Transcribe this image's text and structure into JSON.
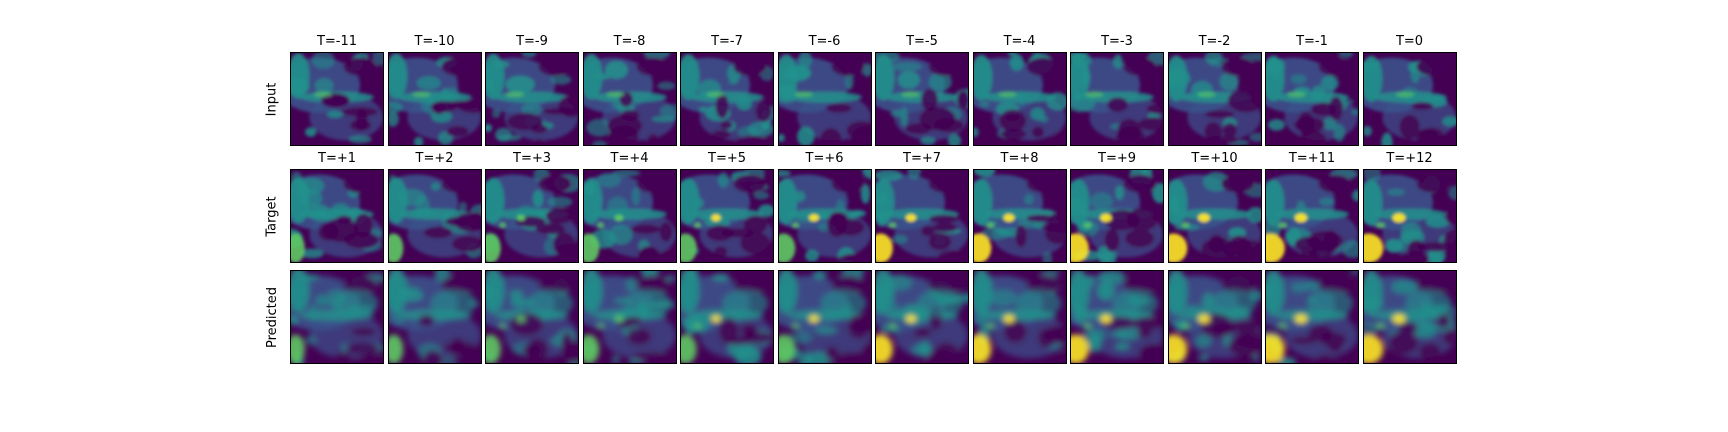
{
  "figure": {
    "colormap": "viridis",
    "rows": [
      {
        "label": "Input",
        "titles": [
          "T=-11",
          "T=-10",
          "T=-9",
          "T=-8",
          "T=-7",
          "T=-6",
          "T=-5",
          "T=-4",
          "T=-3",
          "T=-2",
          "T=-1",
          "T=0"
        ]
      },
      {
        "label": "Target",
        "titles": [
          "T=+1",
          "T=+2",
          "T=+3",
          "T=+4",
          "T=+5",
          "T=+6",
          "T=+7",
          "T=+8",
          "T=+9",
          "T=+10",
          "T=+11",
          "T=+12"
        ]
      },
      {
        "label": "Predicted",
        "titles": []
      }
    ]
  },
  "palette": {
    "dark": "#440154",
    "deep": "#3b528b",
    "mid": "#21918c",
    "green": "#5ec962",
    "yellow": "#fde725"
  }
}
